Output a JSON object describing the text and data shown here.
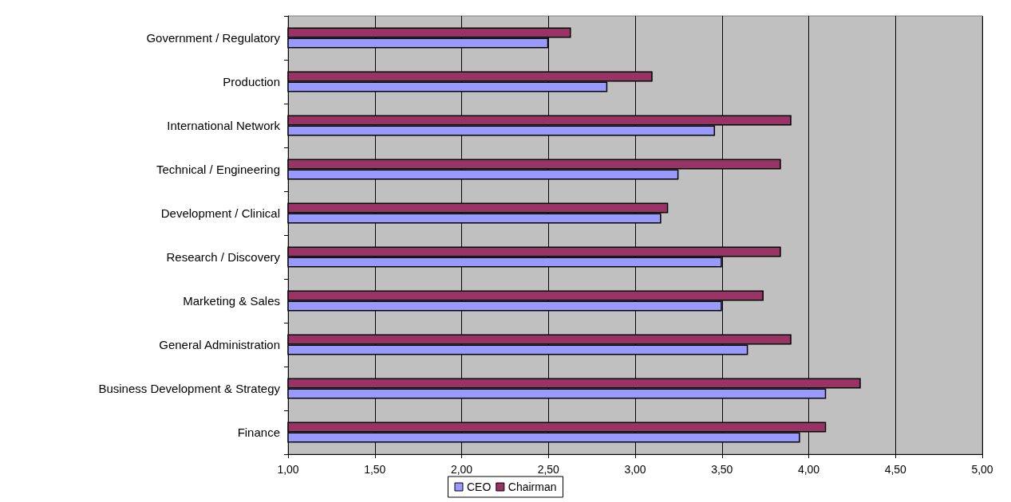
{
  "chart_data": {
    "type": "bar",
    "orientation": "horizontal",
    "categories": [
      "Government / Regulatory",
      "Production",
      "International Network",
      "Technical / Engineering",
      "Development / Clinical",
      "Research / Discovery",
      "Marketing & Sales",
      "General Administration",
      "Business Development & Strategy",
      "Finance"
    ],
    "series": [
      {
        "name": "CEO",
        "color": "#9999ff",
        "values": [
          2.5,
          2.84,
          3.46,
          3.25,
          3.15,
          3.5,
          3.5,
          3.65,
          4.1,
          3.95
        ]
      },
      {
        "name": "Chairman",
        "color": "#993366",
        "values": [
          2.63,
          3.1,
          3.9,
          3.84,
          3.19,
          3.84,
          3.74,
          3.9,
          4.3,
          4.1
        ]
      }
    ],
    "xlim": [
      1,
      5
    ],
    "xticks": [
      {
        "value": 1,
        "label": "1,00"
      },
      {
        "value": 1.5,
        "label": "1,50"
      },
      {
        "value": 2,
        "label": "2,00"
      },
      {
        "value": 2.5,
        "label": "2,50"
      },
      {
        "value": 3,
        "label": "3,00"
      },
      {
        "value": 3.5,
        "label": "3,50"
      },
      {
        "value": 4,
        "label": "4,00"
      },
      {
        "value": 4.5,
        "label": "4,50"
      },
      {
        "value": 5,
        "label": "5,00"
      }
    ],
    "grid": "x",
    "legend": "bottom"
  }
}
